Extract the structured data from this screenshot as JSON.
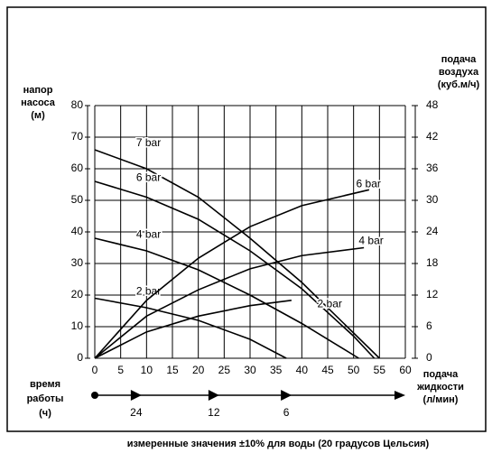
{
  "chart_data": {
    "type": "line",
    "caption": "измеренные значения ±10% для воды (20 градусов Цельсия)",
    "y_label": [
      "напор",
      "насоса",
      "(м)"
    ],
    "y2_label": [
      "подача",
      "воздуха",
      "(куб.м/ч)"
    ],
    "x_label": [
      "подача",
      "жидкости",
      "(л/мин)"
    ],
    "xlim": [
      0,
      60
    ],
    "xticks": [
      0,
      5,
      10,
      15,
      20,
      25,
      30,
      35,
      40,
      45,
      50,
      55,
      60
    ],
    "ylim": [
      0,
      80
    ],
    "yticks": [
      0,
      10,
      20,
      30,
      40,
      50,
      60,
      70,
      80
    ],
    "y2lim": [
      0,
      48
    ],
    "y2ticks": [
      0,
      6,
      12,
      18,
      24,
      30,
      36,
      42,
      48
    ],
    "grid": true,
    "series": [
      {
        "name": "7 bar",
        "color": "#000000",
        "x": [
          0,
          10,
          20,
          30,
          40,
          50,
          55
        ],
        "values": [
          66,
          60,
          51,
          38,
          24,
          8,
          0
        ]
      },
      {
        "name": "6 bar",
        "color": "#000000",
        "x": [
          0,
          10,
          20,
          30,
          40,
          50,
          54
        ],
        "values": [
          56,
          51,
          44,
          34,
          22,
          7,
          0
        ]
      },
      {
        "name": "4 bar",
        "color": "#000000",
        "x": [
          0,
          10,
          20,
          30,
          40,
          50,
          51
        ],
        "values": [
          38,
          34,
          28,
          20,
          11,
          1,
          0
        ]
      },
      {
        "name": "2 bar",
        "color": "#000000",
        "x": [
          0,
          10,
          20,
          30,
          37
        ],
        "values": [
          19,
          16,
          12,
          6,
          0
        ]
      },
      {
        "name": "6 bar",
        "color": "#000000",
        "axis": "y2",
        "x": [
          0,
          10,
          20,
          30,
          40,
          53
        ],
        "values": [
          0,
          11,
          19,
          25,
          29,
          32
        ]
      },
      {
        "name": "4 bar",
        "color": "#000000",
        "axis": "y2",
        "x": [
          0,
          10,
          20,
          30,
          40,
          52
        ],
        "values": [
          0,
          8,
          13,
          17,
          19.5,
          21
        ]
      },
      {
        "name": "2 bar",
        "color": "#000000",
        "axis": "y2",
        "x": [
          0,
          10,
          20,
          30,
          38
        ],
        "values": [
          0,
          5,
          8,
          10,
          11
        ]
      }
    ],
    "time_axis": {
      "label": [
        "время",
        "работы",
        "(ч)"
      ],
      "x": [
        8,
        23,
        37
      ],
      "hours": [
        24,
        12,
        6
      ]
    }
  }
}
